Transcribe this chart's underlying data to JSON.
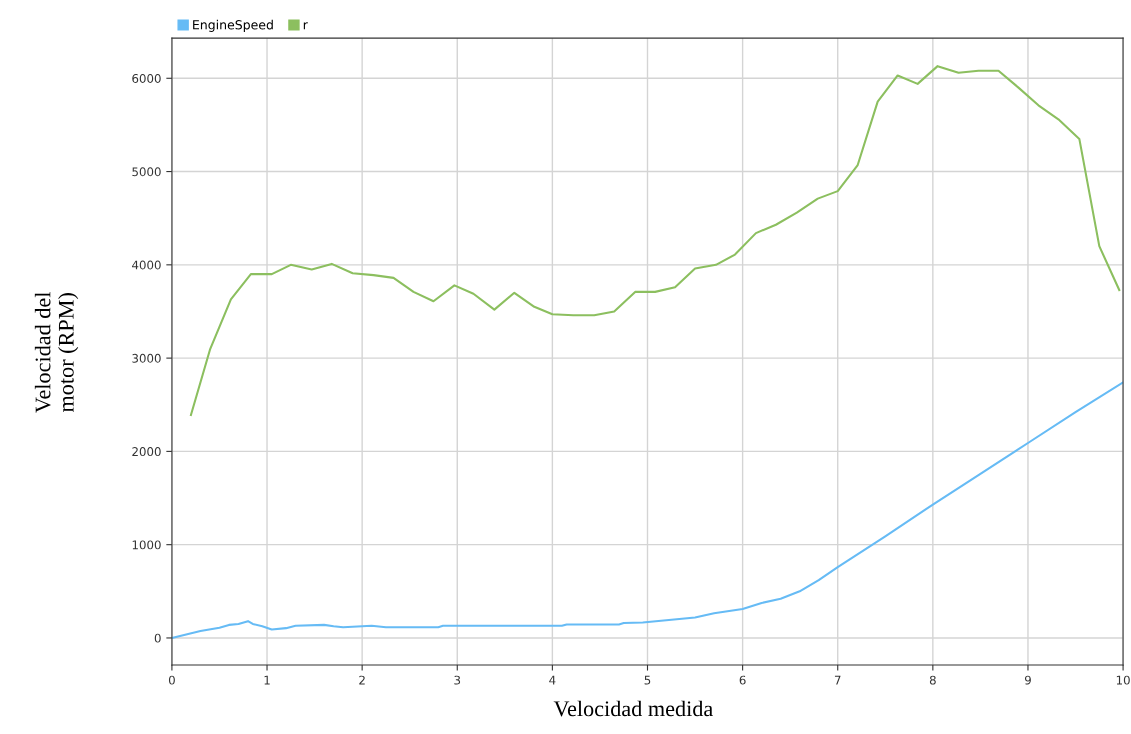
{
  "chart_data": {
    "type": "line",
    "xlabel": "Velocidad medida",
    "ylabel": "Velocidad del\nmotor (RPM)",
    "xlim": [
      0,
      10
    ],
    "xticks": [
      0,
      1,
      2,
      3,
      4,
      5,
      6,
      7,
      8,
      9,
      10
    ],
    "ylim": [
      -290,
      6430
    ],
    "yticks": [
      0,
      1000,
      2000,
      3000,
      4000,
      5000,
      6000
    ],
    "grid": true,
    "legend": "top left",
    "marker": "none",
    "line_style": "solid",
    "series": [
      {
        "name": "EngineSpeed",
        "color": "#66bbf5",
        "x": [
          0,
          0.3,
          0.5,
          0.6,
          0.7,
          0.8,
          0.85,
          0.95,
          1.05,
          1.2,
          1.3,
          1.6,
          1.7,
          1.8,
          2.1,
          2.25,
          2.8,
          2.85,
          4.1,
          4.15,
          4.7,
          4.75,
          4.95,
          5.5,
          5.7,
          6.0,
          6.2,
          6.4,
          6.6,
          6.8,
          7.0,
          7.5,
          8.0,
          8.5,
          9.0,
          9.5,
          10.0
        ],
        "values": [
          0,
          75,
          110,
          140,
          150,
          180,
          150,
          125,
          90,
          105,
          130,
          140,
          125,
          115,
          130,
          115,
          115,
          130,
          130,
          145,
          145,
          160,
          165,
          220,
          265,
          310,
          375,
          420,
          500,
          620,
          760,
          1090,
          1430,
          1760,
          2090,
          2420,
          2740
        ]
      },
      {
        "name": "r",
        "color": "#8cbf5f",
        "x": [
          0.2,
          0.4,
          0.62,
          0.83,
          1.05,
          1.25,
          1.47,
          1.68,
          1.9,
          2.12,
          2.33,
          2.54,
          2.75,
          2.97,
          3.17,
          3.39,
          3.6,
          3.81,
          4.0,
          4.22,
          4.44,
          4.65,
          4.87,
          5.08,
          5.29,
          5.5,
          5.72,
          5.92,
          6.14,
          6.35,
          6.57,
          6.79,
          7.0,
          7.21,
          7.42,
          7.63,
          7.84,
          8.05,
          8.27,
          8.48,
          8.69,
          8.9,
          9.11,
          9.32,
          9.54,
          9.75,
          9.96
        ],
        "values": [
          2390,
          3090,
          3630,
          3900,
          3900,
          4000,
          3950,
          4010,
          3910,
          3890,
          3860,
          3710,
          3610,
          3780,
          3690,
          3520,
          3700,
          3550,
          3470,
          3460,
          3460,
          3500,
          3710,
          3710,
          3760,
          3960,
          4000,
          4110,
          4340,
          4430,
          4560,
          4710,
          4790,
          5070,
          5750,
          6030,
          5940,
          6130,
          6060,
          6080,
          6080,
          5900,
          5710,
          5560,
          5350,
          4200,
          3730
        ]
      }
    ]
  }
}
